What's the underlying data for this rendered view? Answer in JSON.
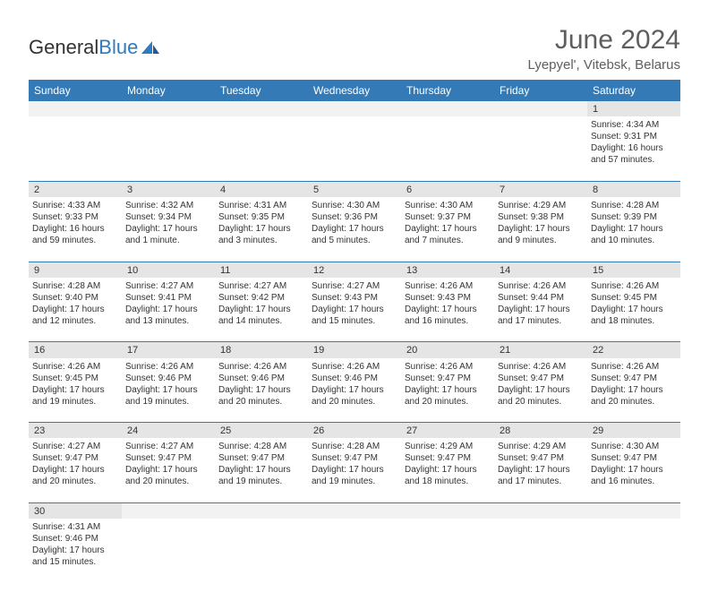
{
  "brand": {
    "part1": "General",
    "part2": "Blue"
  },
  "title": "June 2024",
  "location": "Lyepyel', Vitebsk, Belarus",
  "colors": {
    "header_bg": "#337ab7",
    "header_text": "#ffffff",
    "daynum_bg": "#e5e5e5",
    "blank_bg": "#f2f2f2",
    "text": "#333333",
    "title_text": "#5e5e5e",
    "logo_blue": "#2f7bbf"
  },
  "typography": {
    "title_fontsize": 30,
    "location_fontsize": 15,
    "dayheader_fontsize": 12,
    "daynum_fontsize": 11,
    "cell_fontsize": 10
  },
  "day_headers": [
    "Sunday",
    "Monday",
    "Tuesday",
    "Wednesday",
    "Thursday",
    "Friday",
    "Saturday"
  ],
  "weeks": [
    [
      null,
      null,
      null,
      null,
      null,
      null,
      {
        "n": "1",
        "sunrise": "Sunrise: 4:34 AM",
        "sunset": "Sunset: 9:31 PM",
        "daylight": "Daylight: 16 hours and 57 minutes."
      }
    ],
    [
      {
        "n": "2",
        "sunrise": "Sunrise: 4:33 AM",
        "sunset": "Sunset: 9:33 PM",
        "daylight": "Daylight: 16 hours and 59 minutes."
      },
      {
        "n": "3",
        "sunrise": "Sunrise: 4:32 AM",
        "sunset": "Sunset: 9:34 PM",
        "daylight": "Daylight: 17 hours and 1 minute."
      },
      {
        "n": "4",
        "sunrise": "Sunrise: 4:31 AM",
        "sunset": "Sunset: 9:35 PM",
        "daylight": "Daylight: 17 hours and 3 minutes."
      },
      {
        "n": "5",
        "sunrise": "Sunrise: 4:30 AM",
        "sunset": "Sunset: 9:36 PM",
        "daylight": "Daylight: 17 hours and 5 minutes."
      },
      {
        "n": "6",
        "sunrise": "Sunrise: 4:30 AM",
        "sunset": "Sunset: 9:37 PM",
        "daylight": "Daylight: 17 hours and 7 minutes."
      },
      {
        "n": "7",
        "sunrise": "Sunrise: 4:29 AM",
        "sunset": "Sunset: 9:38 PM",
        "daylight": "Daylight: 17 hours and 9 minutes."
      },
      {
        "n": "8",
        "sunrise": "Sunrise: 4:28 AM",
        "sunset": "Sunset: 9:39 PM",
        "daylight": "Daylight: 17 hours and 10 minutes."
      }
    ],
    [
      {
        "n": "9",
        "sunrise": "Sunrise: 4:28 AM",
        "sunset": "Sunset: 9:40 PM",
        "daylight": "Daylight: 17 hours and 12 minutes."
      },
      {
        "n": "10",
        "sunrise": "Sunrise: 4:27 AM",
        "sunset": "Sunset: 9:41 PM",
        "daylight": "Daylight: 17 hours and 13 minutes."
      },
      {
        "n": "11",
        "sunrise": "Sunrise: 4:27 AM",
        "sunset": "Sunset: 9:42 PM",
        "daylight": "Daylight: 17 hours and 14 minutes."
      },
      {
        "n": "12",
        "sunrise": "Sunrise: 4:27 AM",
        "sunset": "Sunset: 9:43 PM",
        "daylight": "Daylight: 17 hours and 15 minutes."
      },
      {
        "n": "13",
        "sunrise": "Sunrise: 4:26 AM",
        "sunset": "Sunset: 9:43 PM",
        "daylight": "Daylight: 17 hours and 16 minutes."
      },
      {
        "n": "14",
        "sunrise": "Sunrise: 4:26 AM",
        "sunset": "Sunset: 9:44 PM",
        "daylight": "Daylight: 17 hours and 17 minutes."
      },
      {
        "n": "15",
        "sunrise": "Sunrise: 4:26 AM",
        "sunset": "Sunset: 9:45 PM",
        "daylight": "Daylight: 17 hours and 18 minutes."
      }
    ],
    [
      {
        "n": "16",
        "sunrise": "Sunrise: 4:26 AM",
        "sunset": "Sunset: 9:45 PM",
        "daylight": "Daylight: 17 hours and 19 minutes."
      },
      {
        "n": "17",
        "sunrise": "Sunrise: 4:26 AM",
        "sunset": "Sunset: 9:46 PM",
        "daylight": "Daylight: 17 hours and 19 minutes."
      },
      {
        "n": "18",
        "sunrise": "Sunrise: 4:26 AM",
        "sunset": "Sunset: 9:46 PM",
        "daylight": "Daylight: 17 hours and 20 minutes."
      },
      {
        "n": "19",
        "sunrise": "Sunrise: 4:26 AM",
        "sunset": "Sunset: 9:46 PM",
        "daylight": "Daylight: 17 hours and 20 minutes."
      },
      {
        "n": "20",
        "sunrise": "Sunrise: 4:26 AM",
        "sunset": "Sunset: 9:47 PM",
        "daylight": "Daylight: 17 hours and 20 minutes."
      },
      {
        "n": "21",
        "sunrise": "Sunrise: 4:26 AM",
        "sunset": "Sunset: 9:47 PM",
        "daylight": "Daylight: 17 hours and 20 minutes."
      },
      {
        "n": "22",
        "sunrise": "Sunrise: 4:26 AM",
        "sunset": "Sunset: 9:47 PM",
        "daylight": "Daylight: 17 hours and 20 minutes."
      }
    ],
    [
      {
        "n": "23",
        "sunrise": "Sunrise: 4:27 AM",
        "sunset": "Sunset: 9:47 PM",
        "daylight": "Daylight: 17 hours and 20 minutes."
      },
      {
        "n": "24",
        "sunrise": "Sunrise: 4:27 AM",
        "sunset": "Sunset: 9:47 PM",
        "daylight": "Daylight: 17 hours and 20 minutes."
      },
      {
        "n": "25",
        "sunrise": "Sunrise: 4:28 AM",
        "sunset": "Sunset: 9:47 PM",
        "daylight": "Daylight: 17 hours and 19 minutes."
      },
      {
        "n": "26",
        "sunrise": "Sunrise: 4:28 AM",
        "sunset": "Sunset: 9:47 PM",
        "daylight": "Daylight: 17 hours and 19 minutes."
      },
      {
        "n": "27",
        "sunrise": "Sunrise: 4:29 AM",
        "sunset": "Sunset: 9:47 PM",
        "daylight": "Daylight: 17 hours and 18 minutes."
      },
      {
        "n": "28",
        "sunrise": "Sunrise: 4:29 AM",
        "sunset": "Sunset: 9:47 PM",
        "daylight": "Daylight: 17 hours and 17 minutes."
      },
      {
        "n": "29",
        "sunrise": "Sunrise: 4:30 AM",
        "sunset": "Sunset: 9:47 PM",
        "daylight": "Daylight: 17 hours and 16 minutes."
      }
    ],
    [
      {
        "n": "30",
        "sunrise": "Sunrise: 4:31 AM",
        "sunset": "Sunset: 9:46 PM",
        "daylight": "Daylight: 17 hours and 15 minutes."
      },
      null,
      null,
      null,
      null,
      null,
      null
    ]
  ]
}
